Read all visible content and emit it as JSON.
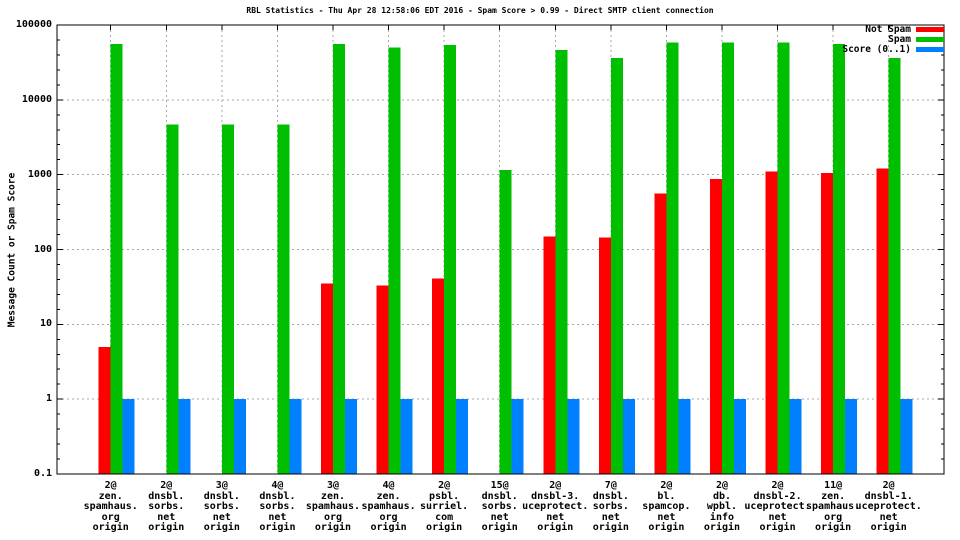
{
  "chart_data": {
    "type": "bar",
    "title": "RBL Statistics - Thu Apr 28 12:58:06 EDT 2016 - Spam Score > 0.99 - Direct SMTP client connection",
    "ylabel": "Message Count or Spam Score",
    "xlabel": "",
    "y_scale": "log",
    "ylim": [
      0.1,
      100000
    ],
    "y_ticks": [
      "0.1",
      "1",
      "10",
      "100",
      "1000",
      "10000",
      "100000"
    ],
    "grid": true,
    "legend_position": "top-right-inside",
    "categories": [
      [
        "2@",
        "zen.",
        "spamhaus.",
        "org",
        "origin"
      ],
      [
        "2@",
        "dnsbl.",
        "sorbs.",
        "net",
        "origin"
      ],
      [
        "3@",
        "dnsbl.",
        "sorbs.",
        "net",
        "origin"
      ],
      [
        "4@",
        "dnsbl.",
        "sorbs.",
        "net",
        "origin"
      ],
      [
        "3@",
        "zen.",
        "spamhaus.",
        "org",
        "origin"
      ],
      [
        "4@",
        "zen.",
        "spamhaus.",
        "org",
        "origin"
      ],
      [
        "2@",
        "psbl.",
        "surriel.",
        "com",
        "origin"
      ],
      [
        "15@",
        "dnsbl.",
        "sorbs.",
        "net",
        "origin"
      ],
      [
        "2@",
        "dnsbl-3.",
        "uceprotect.",
        "net",
        "origin"
      ],
      [
        "7@",
        "dnsbl.",
        "sorbs.",
        "net",
        "origin"
      ],
      [
        "2@",
        "bl.",
        "spamcop.",
        "net",
        "origin"
      ],
      [
        "2@",
        "db.",
        "wpbl.",
        "info",
        "origin"
      ],
      [
        "2@",
        "dnsbl-2.",
        "uceprotect.",
        "net",
        "origin"
      ],
      [
        "11@",
        "zen.",
        "spamhaus.",
        "org",
        "origin"
      ],
      [
        "2@",
        "dnsbl-1.",
        "uceprotect.",
        "net",
        "origin"
      ]
    ],
    "series": [
      {
        "name": "Not Spam",
        "color": "#ff0000",
        "values": [
          5,
          0,
          0,
          0,
          35,
          33,
          41,
          0,
          150,
          145,
          560,
          870,
          1100,
          1050,
          1200
        ]
      },
      {
        "name": "Spam",
        "color": "#00bf00",
        "values": [
          56000,
          4700,
          4700,
          4700,
          56000,
          50000,
          54000,
          1150,
          46000,
          36000,
          58000,
          58000,
          58000,
          56000,
          36000
        ]
      },
      {
        "name": "Score (0..1)",
        "color": "#0080ff",
        "values": [
          1,
          1,
          1,
          1,
          1,
          1,
          1,
          1,
          1,
          1,
          1,
          1,
          1,
          1,
          1
        ]
      }
    ],
    "colors": {
      "background": "#ffffff",
      "border": "#000000",
      "grid": "#a9a9a9",
      "text": "#000000"
    }
  }
}
